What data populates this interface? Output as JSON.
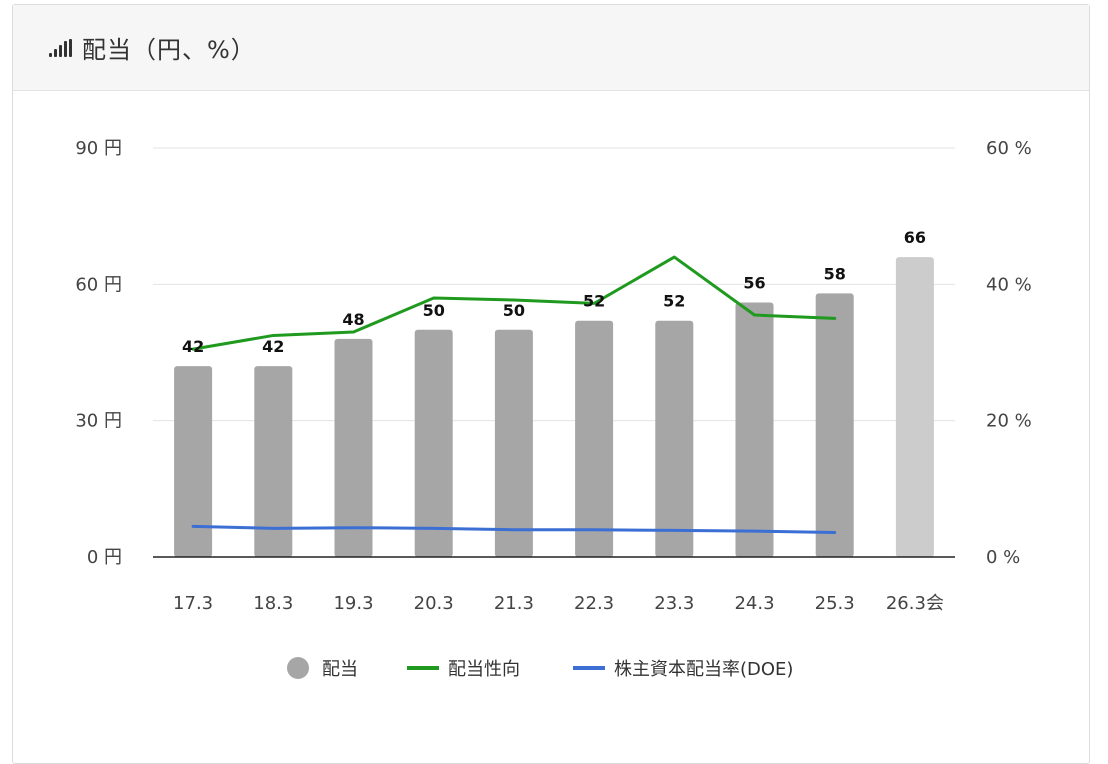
{
  "header": {
    "title": "配当（円、%）",
    "icon": "signal-bars-icon"
  },
  "chart_data": {
    "type": "bar",
    "categories": [
      "17.3",
      "18.3",
      "19.3",
      "20.3",
      "21.3",
      "22.3",
      "23.3",
      "24.3",
      "25.3",
      "26.3会"
    ],
    "bar_series": {
      "name": "配当",
      "values": [
        42,
        42,
        48,
        50,
        50,
        52,
        52,
        56,
        58,
        66
      ],
      "data_labels": [
        "42",
        "42",
        "48",
        "50",
        "50",
        "52",
        "52",
        "56",
        "58",
        "66"
      ],
      "forecast_index": 9,
      "color": "#a6a6a6",
      "forecast_color": "#cccccc"
    },
    "line_series": [
      {
        "name": "配当性向",
        "color": "#1f9a1f",
        "values": [
          30.5,
          32.5,
          33.0,
          38.0,
          37.7,
          37.2,
          44.0,
          35.5,
          35.0,
          null
        ]
      },
      {
        "name": "株主資本配当率(DOE)",
        "color": "#3b6fd4",
        "values": [
          4.5,
          4.2,
          4.3,
          4.2,
          4.0,
          4.0,
          3.9,
          3.8,
          3.6,
          null
        ]
      }
    ],
    "y_left": {
      "min": 0,
      "max": 90,
      "ticks": [
        "0 円",
        "30 円",
        "60 円",
        "90 円"
      ],
      "tick_values": [
        0,
        30,
        60,
        90
      ]
    },
    "y_right": {
      "min": 0,
      "max": 60,
      "ticks": [
        "0 %",
        "20 %",
        "40 %",
        "60 %"
      ],
      "tick_values": [
        0,
        20,
        40,
        60
      ]
    },
    "grid": true,
    "legend_position": "bottom"
  }
}
